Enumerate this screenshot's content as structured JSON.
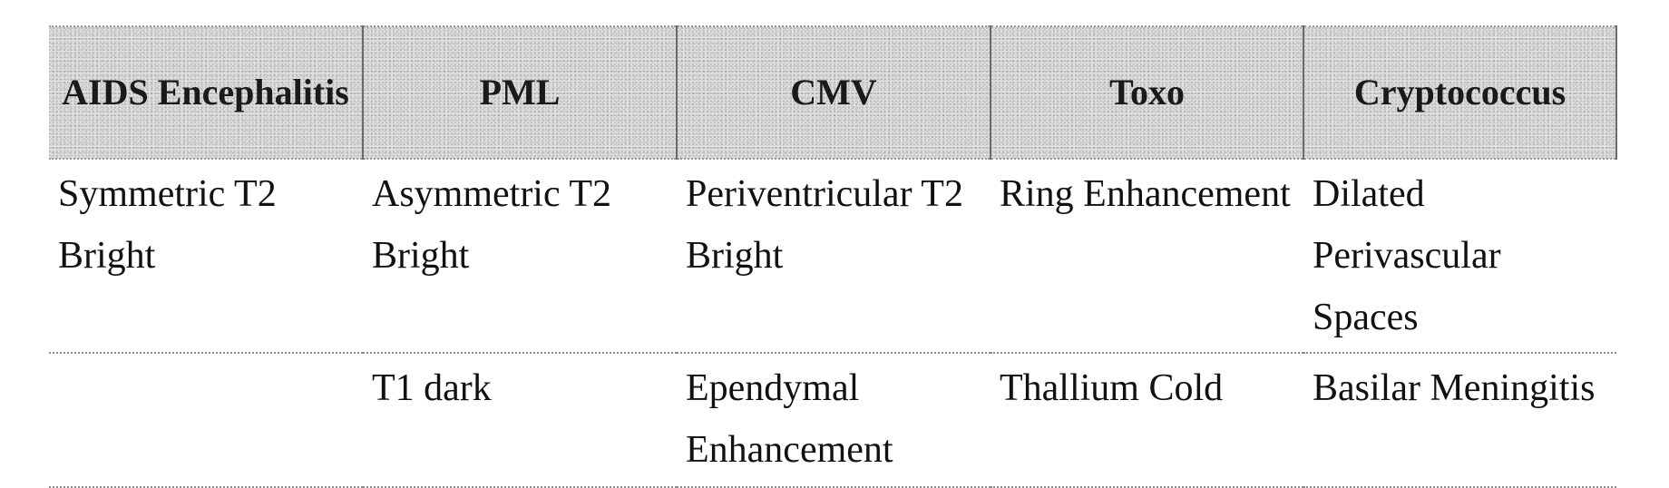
{
  "table": {
    "headers": [
      "AIDS Encephalitis",
      "PML",
      "CMV",
      "Toxo",
      "Cryptococcus"
    ],
    "rows": [
      [
        "Symmetric T2 Bright",
        "Asymmetric T2 Bright",
        "Periventricular T2 Bright",
        "Ring Enhancement",
        "Dilated Perivascular Spaces"
      ],
      [
        "",
        "T1 dark",
        "Ependymal Enhancement",
        "Thallium Cold",
        "Basilar Meningitis"
      ]
    ]
  }
}
